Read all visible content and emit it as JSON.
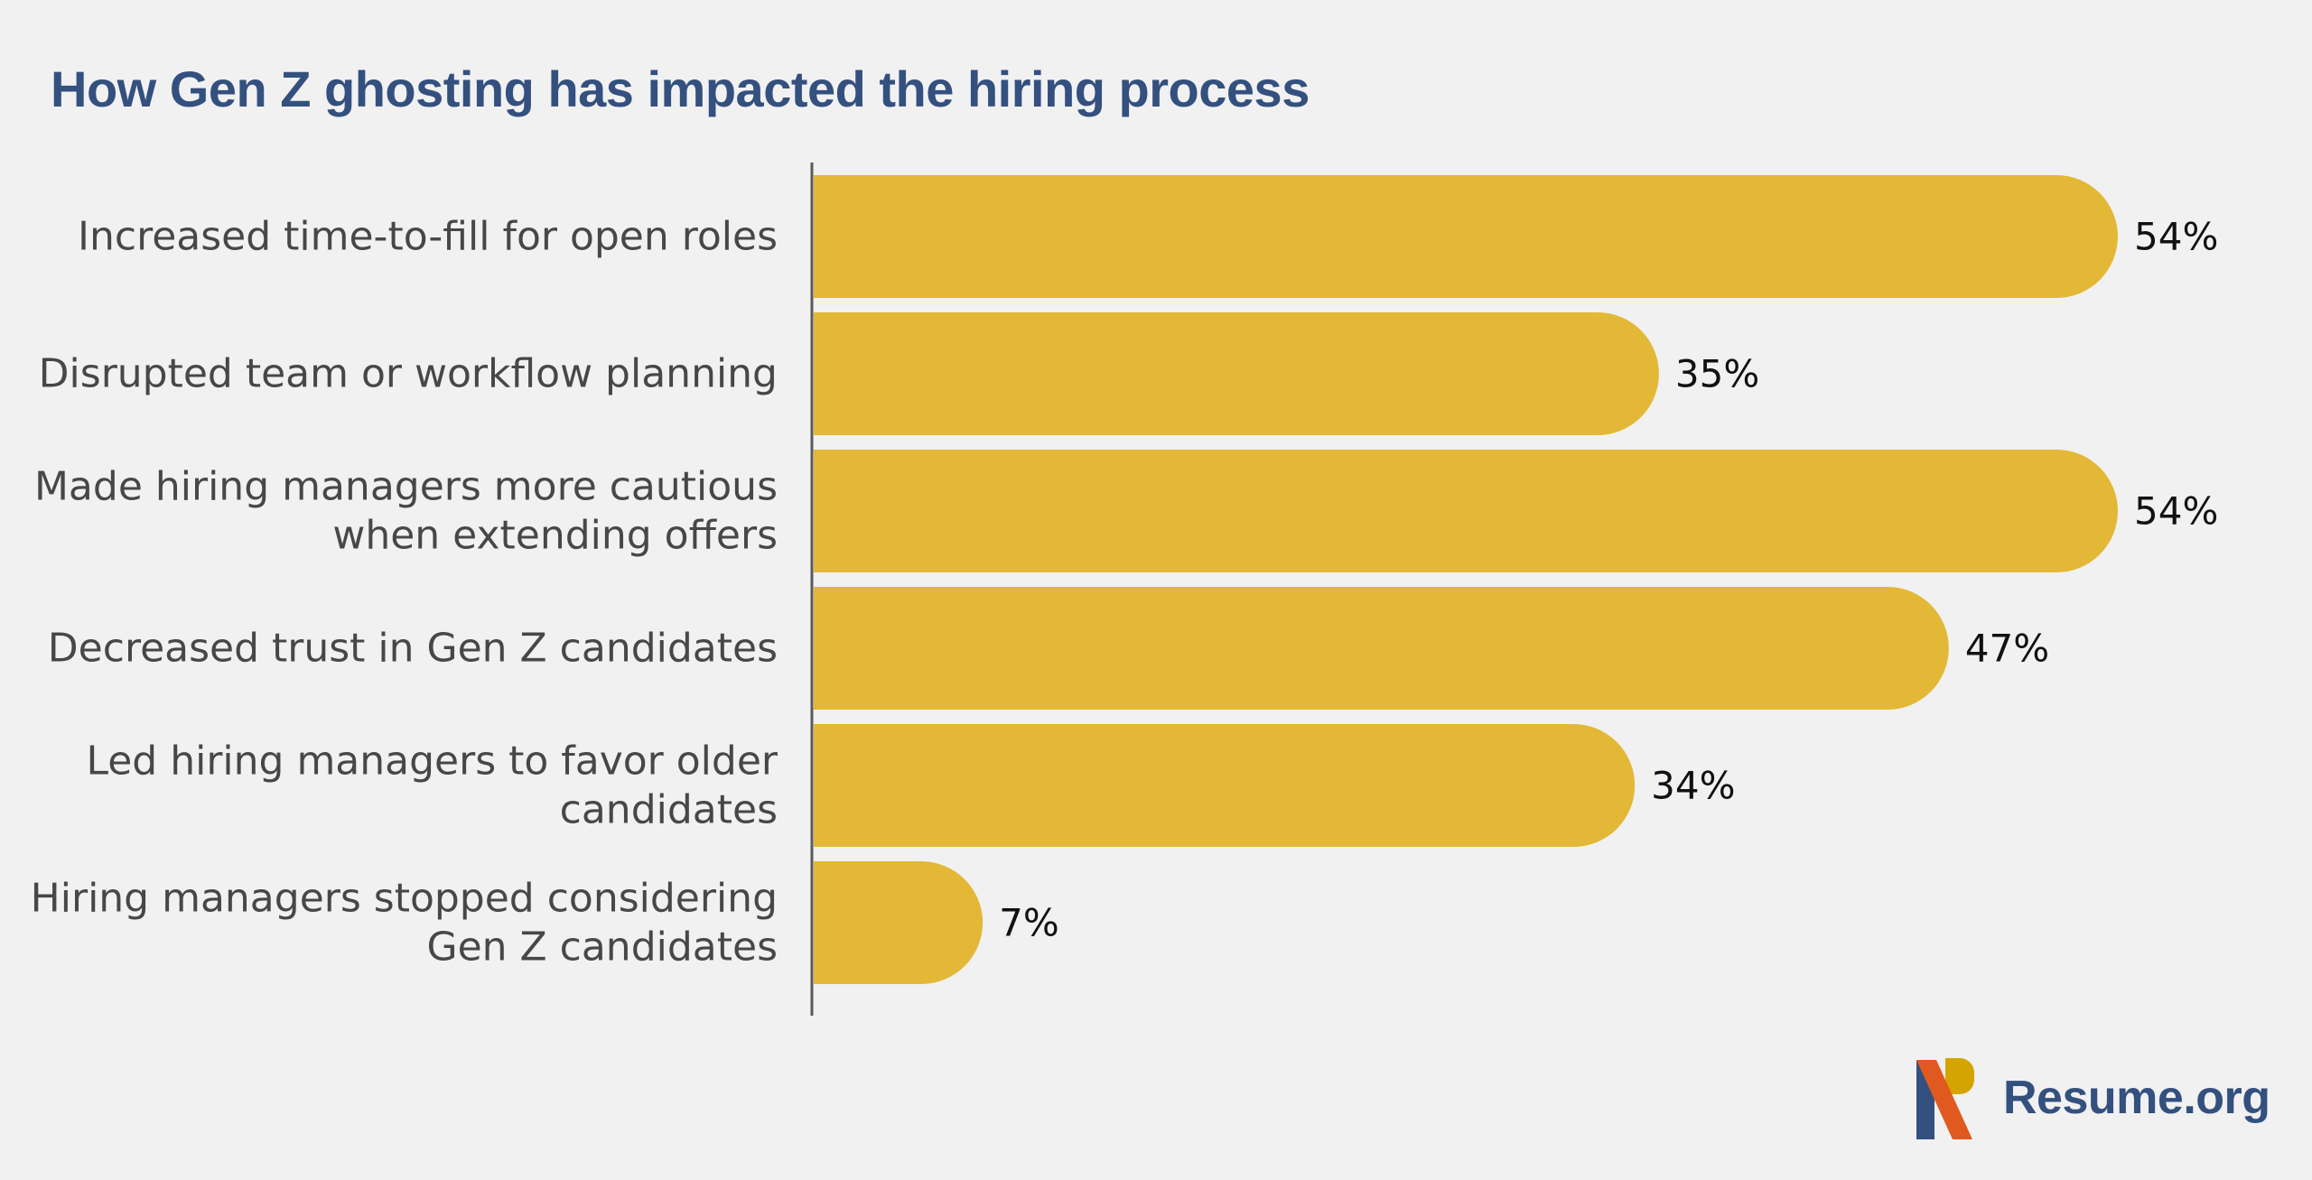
{
  "title": "How Gen Z ghosting has impacted the hiring process",
  "logo": {
    "text": "Resume.org",
    "icon": "resume-org-logo-icon"
  },
  "colors": {
    "bar": "#e3b837",
    "title": "#34507f",
    "axis": "#5a5a5a",
    "label": "#474747",
    "logo_blue": "#34507f",
    "logo_orange": "#e05a1f",
    "logo_gold": "#d4a500"
  },
  "chart_data": {
    "type": "bar",
    "orientation": "horizontal",
    "title": "How Gen Z ghosting has impacted the hiring process",
    "categories": [
      [
        "Increased time-to-fill for open roles"
      ],
      [
        "Disrupted team or workflow planning"
      ],
      [
        "Made hiring managers more cautious",
        "when extending offers"
      ],
      [
        "Decreased trust in Gen Z candidates"
      ],
      [
        "Led hiring managers to favor older",
        "candidates"
      ],
      [
        "Hiring managers stopped considering",
        "Gen Z candidates"
      ]
    ],
    "values": [
      54,
      35,
      54,
      47,
      34,
      7
    ],
    "value_labels": [
      "54%",
      "35%",
      "54%",
      "47%",
      "34%",
      "7%"
    ],
    "xlim": [
      0,
      54
    ],
    "grid": false,
    "legend": "none"
  }
}
